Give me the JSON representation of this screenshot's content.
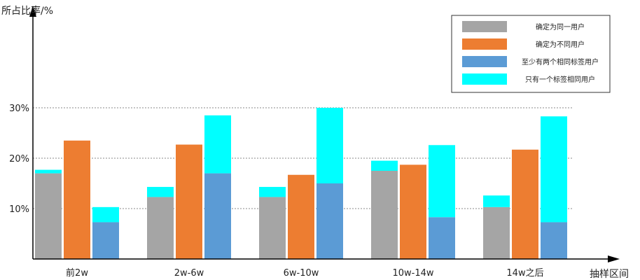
{
  "chart_data": {
    "type": "bar",
    "ylabel": "所占比率/%",
    "xlabel": "抽样区间",
    "categories": [
      "前2w",
      "2w-6w",
      "6w-10w",
      "10w-14w",
      "14w之后"
    ],
    "y_ticks": [
      {
        "value": 10,
        "label": "10%"
      },
      {
        "value": 20,
        "label": "20%"
      },
      {
        "value": 30,
        "label": "30%"
      }
    ],
    "ylim": [
      0,
      50
    ],
    "grid": "dashed horizontal lines at 10, 20, 30",
    "legend_position": "top-right",
    "legend": [
      {
        "label": "确定为同一用户",
        "color": "#a5a5a5"
      },
      {
        "label": "确定为不同用户",
        "color": "#ed7d31"
      },
      {
        "label": "至少有两个相同标签用户",
        "color": "#5b9bd5"
      },
      {
        "label": "只有一个标签相同用户",
        "color": "#00ffff"
      }
    ],
    "groups": [
      {
        "category": "前2w",
        "bars": [
          {
            "segments": [
              {
                "series": "确定为同一用户",
                "value": 17
              },
              {
                "series": "只有一个标签相同用户",
                "value": 0.7
              }
            ]
          },
          {
            "segments": [
              {
                "series": "确定为不同用户",
                "value": 23.5
              }
            ]
          },
          {
            "segments": [
              {
                "series": "至少有两个相同标签用户",
                "value": 7.3
              },
              {
                "series": "只有一个标签相同用户",
                "value": 3
              }
            ]
          }
        ]
      },
      {
        "category": "2w-6w",
        "bars": [
          {
            "segments": [
              {
                "series": "确定为同一用户",
                "value": 12.3
              },
              {
                "series": "只有一个标签相同用户",
                "value": 2
              }
            ]
          },
          {
            "segments": [
              {
                "series": "确定为不同用户",
                "value": 22.7
              }
            ]
          },
          {
            "segments": [
              {
                "series": "至少有两个相同标签用户",
                "value": 17
              },
              {
                "series": "只有一个标签相同用户",
                "value": 11.5
              }
            ]
          }
        ]
      },
      {
        "category": "6w-10w",
        "bars": [
          {
            "segments": [
              {
                "series": "确定为同一用户",
                "value": 12.3
              },
              {
                "series": "只有一个标签相同用户",
                "value": 2
              }
            ]
          },
          {
            "segments": [
              {
                "series": "确定为不同用户",
                "value": 16.7
              }
            ]
          },
          {
            "segments": [
              {
                "series": "至少有两个相同标签用户",
                "value": 15
              },
              {
                "series": "只有一个标签相同用户",
                "value": 15
              }
            ]
          }
        ]
      },
      {
        "category": "10w-14w",
        "bars": [
          {
            "segments": [
              {
                "series": "确定为同一用户",
                "value": 17.5
              },
              {
                "series": "只有一个标签相同用户",
                "value": 2
              }
            ]
          },
          {
            "segments": [
              {
                "series": "确定为不同用户",
                "value": 18.7
              }
            ]
          },
          {
            "segments": [
              {
                "series": "至少有两个相同标签用户",
                "value": 8.3
              },
              {
                "series": "只有一个标签相同用户",
                "value": 14.3
              }
            ]
          }
        ]
      },
      {
        "category": "14w之后",
        "bars": [
          {
            "segments": [
              {
                "series": "确定为同一用户",
                "value": 10.3
              },
              {
                "series": "只有一个标签相同用户",
                "value": 2.3
              }
            ]
          },
          {
            "segments": [
              {
                "series": "确定为不同用户",
                "value": 21.7
              }
            ]
          },
          {
            "segments": [
              {
                "series": "至少有两个相同标签用户",
                "value": 7.3
              },
              {
                "series": "只有一个标签相同用户",
                "value": 21
              }
            ]
          }
        ]
      }
    ]
  }
}
